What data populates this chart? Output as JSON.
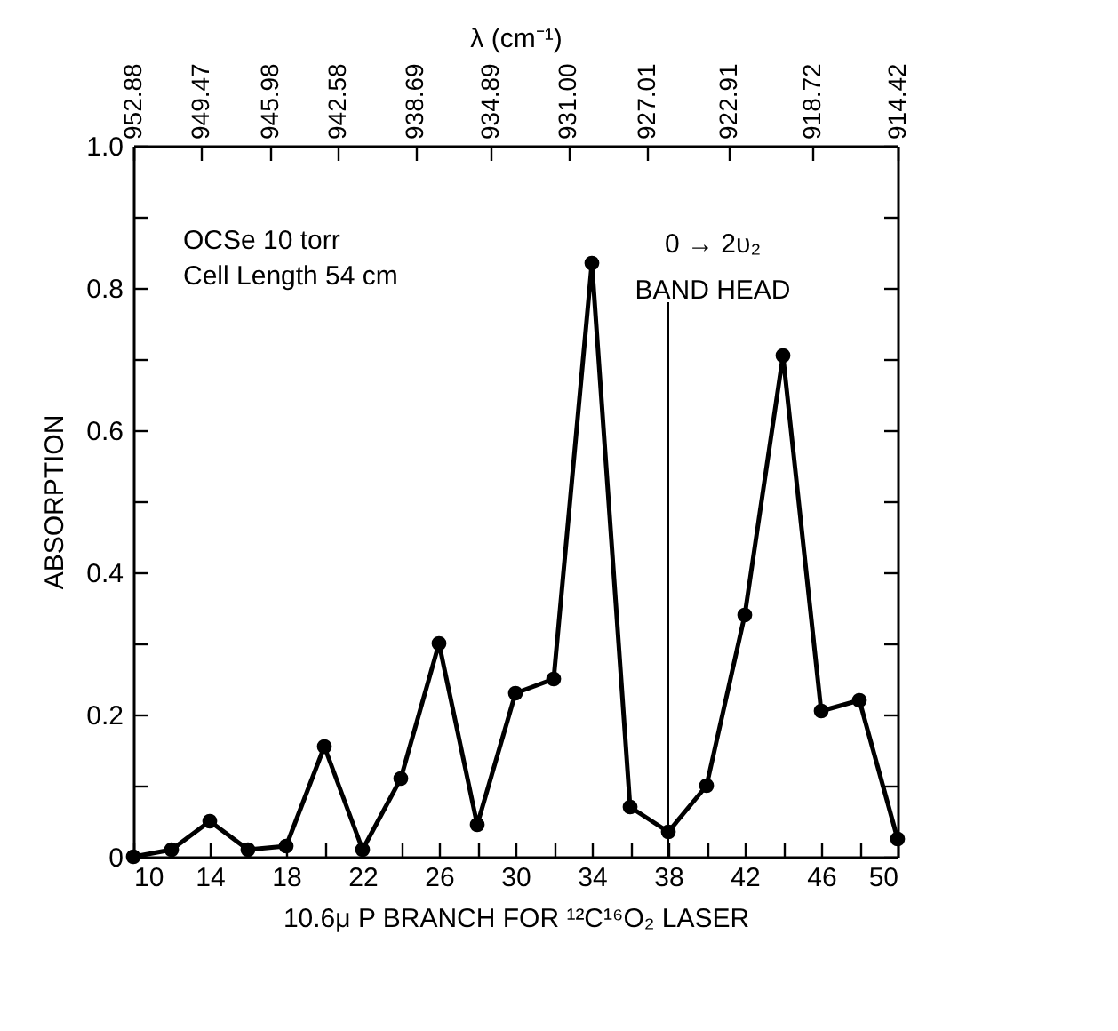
{
  "chart_data": {
    "type": "line",
    "xlabel": "10.6μ P BRANCH FOR ¹²C¹⁶O₂ LASER",
    "ylabel": "ABSORPTION",
    "x2label": "λ (cm⁻¹)",
    "x": [
      10,
      12,
      14,
      16,
      18,
      20,
      22,
      24,
      26,
      28,
      30,
      32,
      34,
      36,
      38,
      40,
      42,
      44,
      46,
      48,
      50
    ],
    "series": [
      {
        "color": "#000000",
        "values": [
          0.0,
          0.01,
          0.05,
          0.01,
          0.015,
          0.155,
          0.01,
          0.11,
          0.3,
          0.045,
          0.23,
          0.25,
          0.835,
          0.07,
          0.035,
          0.1,
          0.34,
          0.705,
          0.205,
          0.22,
          0.025
        ]
      }
    ],
    "marker": "circle",
    "line_style": "solid",
    "xlim": [
      10,
      50
    ],
    "xticks": [
      10,
      {
        "value": 12,
        "label": null
      },
      14,
      {
        "value": 16,
        "label": null
      },
      18,
      {
        "value": 20,
        "label": null
      },
      22,
      {
        "value": 24,
        "label": null
      },
      26,
      {
        "value": 28,
        "label": null
      },
      30,
      {
        "value": 32,
        "label": null
      },
      34,
      {
        "value": 36,
        "label": null
      },
      38,
      {
        "value": 40,
        "label": null
      },
      42,
      {
        "value": 44,
        "label": null
      },
      46,
      {
        "value": 48,
        "label": null
      },
      50
    ],
    "x2lim": [
      952.88,
      914.42
    ],
    "x2ticks": [
      {
        "value": 952.88,
        "label": "952.88"
      },
      {
        "value": 949.47,
        "label": "949.47"
      },
      {
        "value": 945.98,
        "label": "945.98"
      },
      {
        "value": 942.58,
        "label": "942.58"
      },
      {
        "value": 938.69,
        "label": "938.69"
      },
      {
        "value": 934.89,
        "label": "934.89"
      },
      {
        "value": 931,
        "label": "931.00"
      },
      {
        "value": 927.01,
        "label": "927.01"
      },
      {
        "value": 922.91,
        "label": "922.91"
      },
      {
        "value": 918.72,
        "label": "918.72"
      },
      {
        "value": 914.42,
        "label": "914.42"
      }
    ],
    "ylim": [
      0,
      1
    ],
    "yticks": [
      0,
      {
        "value": 0.1,
        "label": null
      },
      0.2,
      {
        "value": 0.3,
        "label": null
      },
      0.4,
      {
        "value": 0.5,
        "label": null
      },
      0.6,
      {
        "value": 0.7,
        "label": null
      },
      0.8,
      {
        "value": 0.9,
        "label": null
      },
      {
        "value": 1,
        "label": "1.0"
      }
    ],
    "grid": false,
    "ref_lines": [
      {
        "axis": "x",
        "value": 38,
        "label": "0 → 2υ₂\nBAND HEAD",
        "color": "#000000"
      }
    ],
    "annotations": [
      "OCSe 10 torr",
      "Cell Length 54 cm"
    ]
  }
}
